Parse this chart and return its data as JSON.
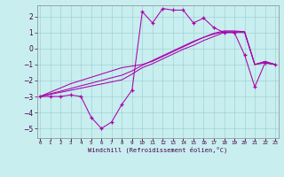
{
  "xlabel": "Windchill (Refroidissement éolien,°C)",
  "bg_color": "#c8eef0",
  "line_color": "#aa00aa",
  "x": [
    0,
    1,
    2,
    3,
    4,
    5,
    6,
    7,
    8,
    9,
    10,
    11,
    12,
    13,
    14,
    15,
    16,
    17,
    18,
    19,
    20,
    21,
    22,
    23
  ],
  "y_main": [
    -3.0,
    -3.0,
    -3.0,
    -2.9,
    -3.0,
    -4.3,
    -5.0,
    -4.6,
    -3.5,
    -2.6,
    2.3,
    1.6,
    2.5,
    2.4,
    2.4,
    1.6,
    1.9,
    1.3,
    1.0,
    1.0,
    -0.4,
    -2.4,
    -0.9,
    -1.0
  ],
  "y_line1": [
    -3.0,
    -2.87,
    -2.74,
    -2.61,
    -2.48,
    -2.35,
    -2.22,
    -2.09,
    -1.96,
    -1.6,
    -1.2,
    -0.95,
    -0.65,
    -0.35,
    -0.05,
    0.2,
    0.5,
    0.75,
    1.0,
    1.0,
    1.0,
    -1.0,
    -0.9,
    -1.0
  ],
  "y_line2": [
    -3.0,
    -2.83,
    -2.67,
    -2.5,
    -2.33,
    -2.17,
    -2.0,
    -1.83,
    -1.67,
    -1.4,
    -1.05,
    -0.75,
    -0.45,
    -0.15,
    0.15,
    0.45,
    0.7,
    0.9,
    1.05,
    1.05,
    1.05,
    -1.0,
    -0.85,
    -1.0
  ],
  "y_line3": [
    -3.0,
    -2.73,
    -2.47,
    -2.2,
    -2.0,
    -1.8,
    -1.6,
    -1.4,
    -1.2,
    -1.1,
    -1.0,
    -0.8,
    -0.5,
    -0.2,
    0.1,
    0.4,
    0.7,
    0.95,
    1.1,
    1.1,
    1.05,
    -1.0,
    -0.8,
    -1.0
  ],
  "yticks": [
    -5,
    -4,
    -3,
    -2,
    -1,
    0,
    1,
    2
  ],
  "ylim": [
    -5.6,
    2.7
  ],
  "xlim": [
    -0.3,
    23.3
  ]
}
